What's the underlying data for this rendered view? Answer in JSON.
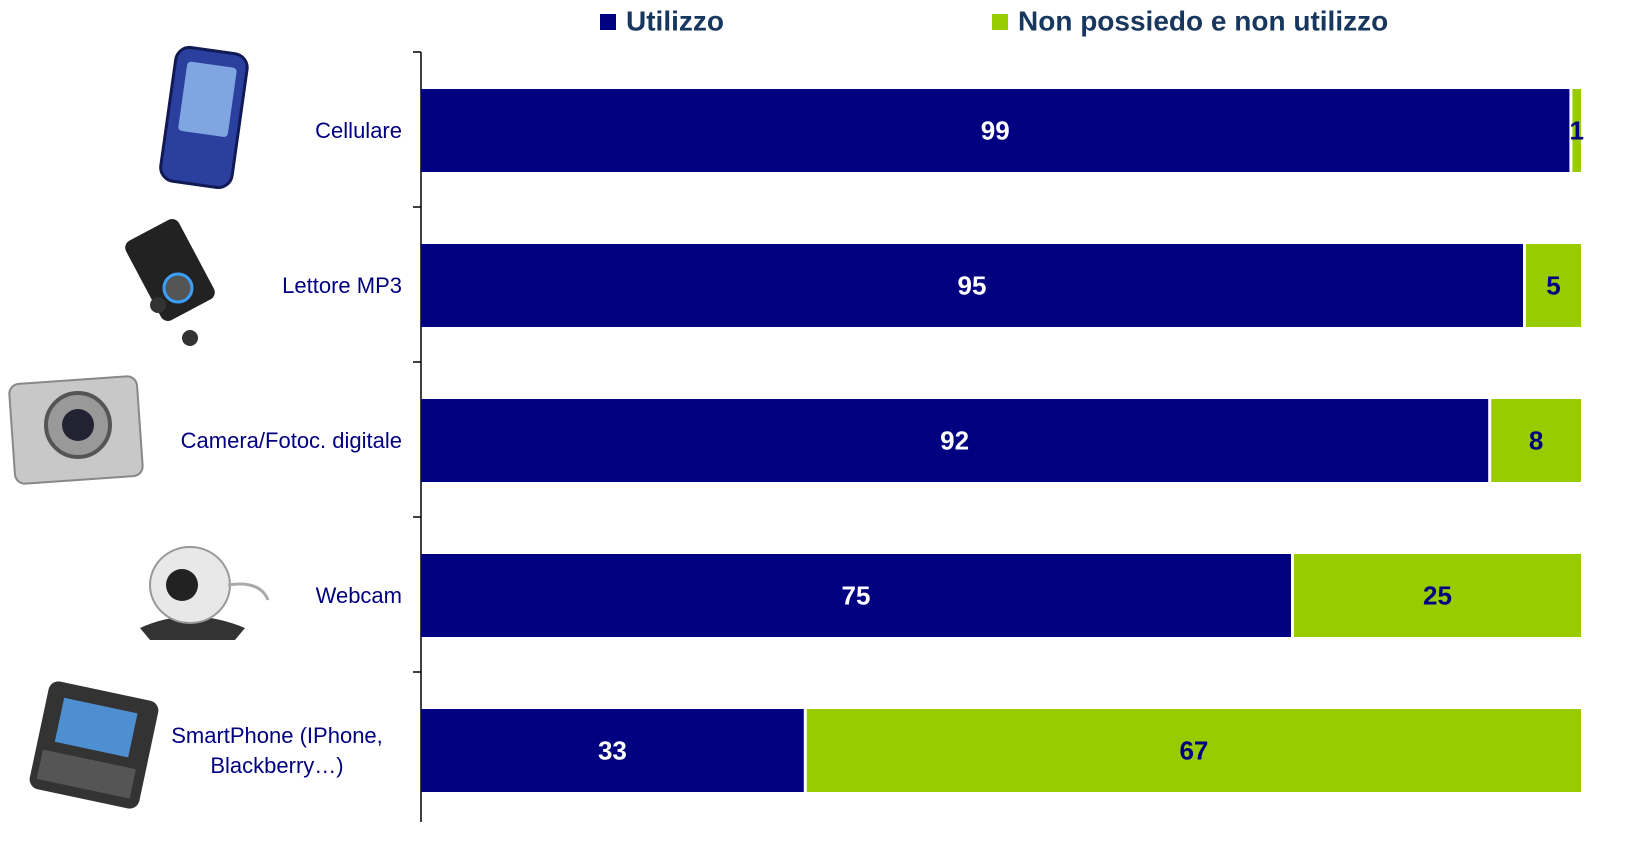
{
  "chart_data": {
    "type": "stacked-bar-horizontal",
    "categories": [
      "Cellulare",
      "Lettore MP3",
      "Camera/Fotoc. digitale",
      "Webcam",
      "SmartPhone (IPhone, Blackberry…)"
    ],
    "series": [
      {
        "name": "Utilizzo",
        "color": "#000080",
        "values": [
          99,
          95,
          92,
          75,
          33
        ]
      },
      {
        "name": "Non possiedo e non utilizzo",
        "color": "#99cc00",
        "values": [
          1,
          5,
          8,
          25,
          67
        ]
      }
    ],
    "xlim": [
      0,
      100
    ]
  }
}
